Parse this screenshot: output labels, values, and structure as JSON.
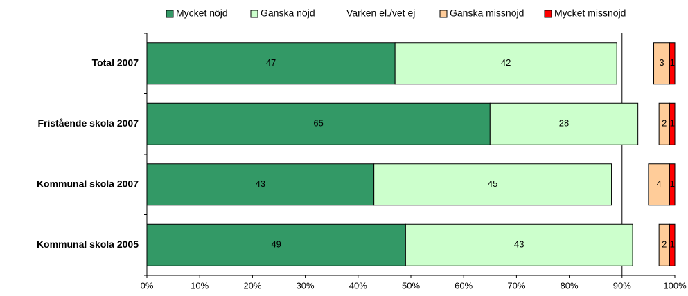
{
  "chart_data": {
    "type": "stacked-bar-horizontal",
    "categories": [
      "Total 2007",
      "Fristående skola 2007",
      "Kommunal skola 2007",
      "Kommunal skola 2005"
    ],
    "series": [
      {
        "name": "Mycket nöjd",
        "color": "#339966",
        "values": [
          47,
          65,
          43,
          49
        ]
      },
      {
        "name": "Ganska nöjd",
        "color": "#ccffcc",
        "values": [
          42,
          28,
          45,
          43
        ]
      },
      {
        "name": "Varken el./vet ej",
        "color": "transparent",
        "show_labels": false,
        "values": [
          7,
          4,
          7,
          5
        ]
      },
      {
        "name": "Ganska missnöjd",
        "color": "#ffcc99",
        "values": [
          3,
          2,
          4,
          2
        ]
      },
      {
        "name": "Mycket missnöjd",
        "color": "#ff0000",
        "values": [
          1,
          1,
          1,
          1
        ]
      }
    ],
    "xlim": [
      0,
      100
    ],
    "xticks": [
      {
        "value": 0,
        "label": "0%"
      },
      {
        "value": 10,
        "label": "10%"
      },
      {
        "value": 20,
        "label": "20%"
      },
      {
        "value": 30,
        "label": "30%"
      },
      {
        "value": 40,
        "label": "40%"
      },
      {
        "value": 50,
        "label": "50%"
      },
      {
        "value": 60,
        "label": "60%"
      },
      {
        "value": 70,
        "label": "70%"
      },
      {
        "value": 80,
        "label": "80%"
      },
      {
        "value": 90,
        "label": "90%"
      },
      {
        "value": 100,
        "label": "100%"
      }
    ],
    "reference_line": 90,
    "legend": "top"
  }
}
